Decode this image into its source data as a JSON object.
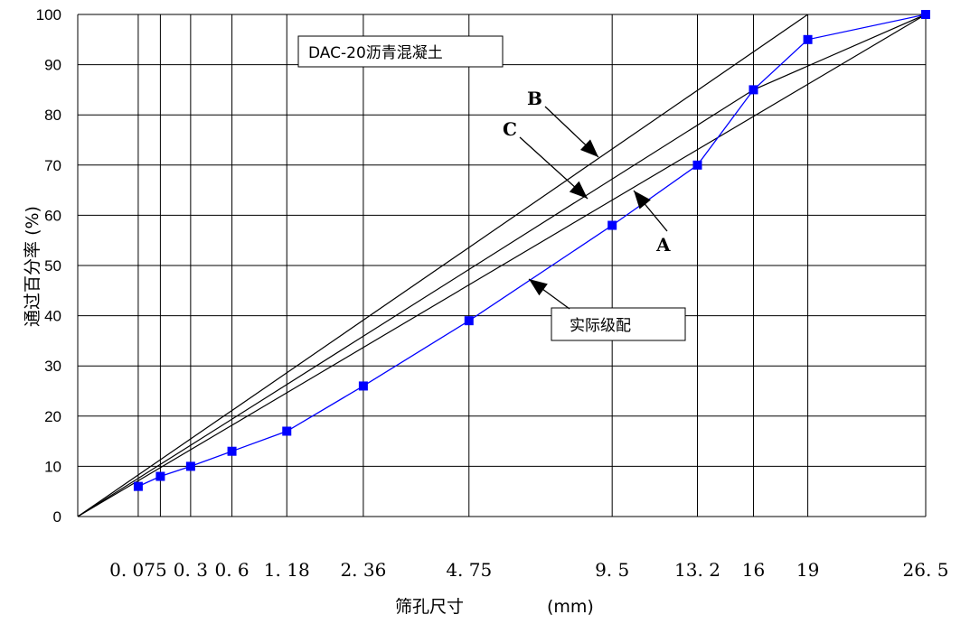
{
  "chart_data": {
    "type": "line",
    "title": "DAC-20沥青混凝土",
    "xlabel": "筛孔尺寸",
    "xunit": "(mm)",
    "ylabel": "通过百分率 (%)",
    "ylim": [
      0,
      100
    ],
    "yticks": [
      0,
      10,
      20,
      30,
      40,
      50,
      60,
      70,
      80,
      90,
      100
    ],
    "x_tick_labels": [
      "0.075",
      "0.3",
      "0.6",
      "1.18",
      "2.36",
      "4.75",
      "9.5",
      "13.2",
      "16",
      "19",
      "26.5"
    ],
    "grid": true,
    "x_scale": "power-0.45 (sieve size)",
    "series": [
      {
        "name": "实际级配",
        "color": "#0000ff",
        "marker": "square",
        "x": [
          0.075,
          0.15,
          0.3,
          0.6,
          1.18,
          2.36,
          4.75,
          9.5,
          13.2,
          16,
          19,
          26.5
        ],
        "y": [
          6,
          8,
          10,
          13,
          17,
          26,
          39,
          58,
          70,
          85,
          95,
          100
        ]
      },
      {
        "name": "A",
        "color": "#000000",
        "x": [
          0,
          26.5
        ],
        "y": [
          0,
          100
        ]
      },
      {
        "name": "B",
        "color": "#000000",
        "x": [
          0,
          19
        ],
        "y": [
          0,
          100
        ]
      },
      {
        "name": "C",
        "color": "#000000",
        "x": [
          0,
          16,
          26.5
        ],
        "y": [
          0,
          85,
          100
        ]
      }
    ],
    "annotations": [
      {
        "text": "B",
        "points_to": "B"
      },
      {
        "text": "C",
        "points_to": "C"
      },
      {
        "text": "A",
        "points_to": "A"
      },
      {
        "text": "实际级配",
        "points_to": "实际级配"
      }
    ]
  }
}
